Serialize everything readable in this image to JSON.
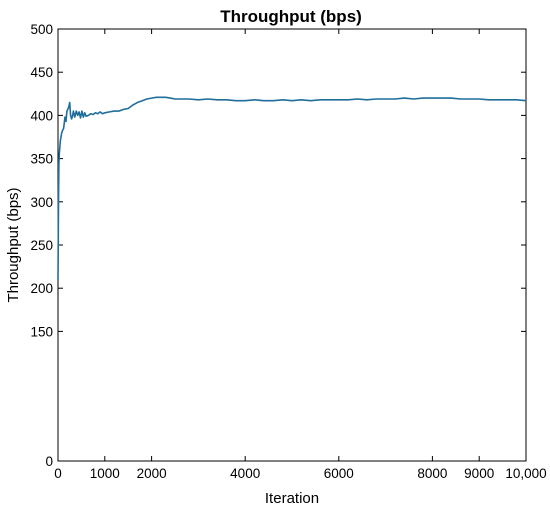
{
  "chart_data": {
    "type": "line",
    "title": "Throughput (bps)",
    "xlabel": "Iteration",
    "ylabel": "Throughput (bps)",
    "xlim": [
      0,
      10000
    ],
    "ylim": [
      0,
      500
    ],
    "x_ticks": [
      0,
      1000,
      2000,
      4000,
      6000,
      8000,
      9000,
      10000
    ],
    "x_tick_labels": [
      "0",
      "1000",
      "2000",
      "4000",
      "6000",
      "8000",
      "9000",
      "10,000"
    ],
    "y_ticks": [
      0,
      150,
      200,
      250,
      300,
      350,
      400,
      450,
      500
    ],
    "y_tick_labels": [
      "0",
      "150",
      "200",
      "250",
      "300",
      "350",
      "400",
      "450",
      "500"
    ],
    "grid": false,
    "legend": false,
    "series": [
      {
        "color": "#1f6e9c",
        "x": [
          0,
          10,
          20,
          30,
          50,
          80,
          100,
          120,
          150,
          170,
          190,
          210,
          230,
          250,
          270,
          290,
          310,
          330,
          360,
          390,
          420,
          450,
          480,
          510,
          540,
          570,
          600,
          650,
          700,
          750,
          800,
          850,
          900,
          950,
          1000,
          1100,
          1200,
          1300,
          1400,
          1500,
          1600,
          1700,
          1800,
          1900,
          2000,
          2100,
          2200,
          2300,
          2400,
          2500,
          2600,
          2800,
          3000,
          3200,
          3400,
          3600,
          3800,
          4000,
          4200,
          4400,
          4600,
          4800,
          5000,
          5200,
          5400,
          5600,
          5800,
          6000,
          6200,
          6400,
          6600,
          6800,
          7000,
          7200,
          7400,
          7600,
          7800,
          8000,
          8200,
          8400,
          8600,
          8800,
          9000,
          9200,
          9400,
          9600,
          9800,
          10000
        ],
        "y": [
          210,
          300,
          345,
          357,
          370,
          380,
          383,
          385,
          398,
          393,
          405,
          407,
          410,
          415,
          400,
          396,
          399,
          405,
          398,
          405,
          400,
          404,
          397,
          405,
          398,
          403,
          399,
          400,
          402,
          401,
          403,
          402,
          404,
          402,
          403,
          404,
          405,
          405,
          407,
          408,
          412,
          415,
          417,
          419,
          420,
          421,
          421,
          421,
          420,
          419,
          419,
          419,
          418,
          419,
          418,
          418,
          417,
          417,
          418,
          417,
          417,
          418,
          417,
          418,
          417,
          418,
          418,
          418,
          418,
          419,
          418,
          419,
          419,
          419,
          420,
          419,
          420,
          420,
          420,
          420,
          419,
          419,
          419,
          418,
          418,
          418,
          418,
          417
        ]
      }
    ]
  }
}
